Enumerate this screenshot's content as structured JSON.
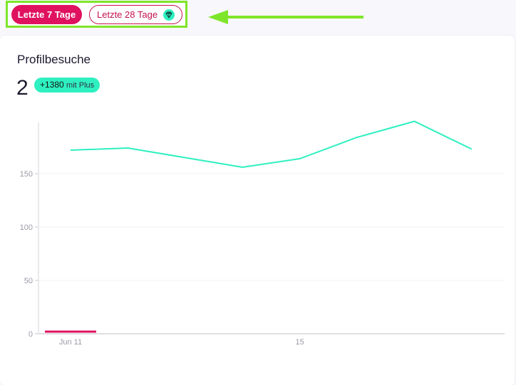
{
  "filters": {
    "last7_label": "Letzte 7 Tage",
    "last28_label": "Letzte 28 Tage",
    "premium_icon": "diamond-icon",
    "highlight_color": "#7ee62a",
    "arrow_color": "#7ee62a",
    "active_color": "#e0115f"
  },
  "card": {
    "title": "Profilbesuche",
    "value": "2",
    "plus_badge": {
      "value": "+1380",
      "suffix": "mit Plus",
      "color": "#2ef0c0"
    }
  },
  "chart_data": {
    "type": "line",
    "x": [
      "Jun 11",
      "Jun 12",
      "Jun 13",
      "Jun 14",
      "Jun 15",
      "Jun 16",
      "Jun 17",
      "Jun 18"
    ],
    "x_tick_labels": [
      "Jun 11",
      "15"
    ],
    "y_tick_labels": [
      "0",
      "50",
      "100",
      "150"
    ],
    "ylim": [
      0,
      200
    ],
    "grid": true,
    "series": [
      {
        "color": "#2ef0c0",
        "values": [
          172,
          174,
          165,
          156,
          164,
          184,
          199,
          173
        ]
      },
      {
        "color": "#e0115f",
        "x": [
          "Jun 11"
        ],
        "values": [
          2
        ]
      }
    ]
  }
}
